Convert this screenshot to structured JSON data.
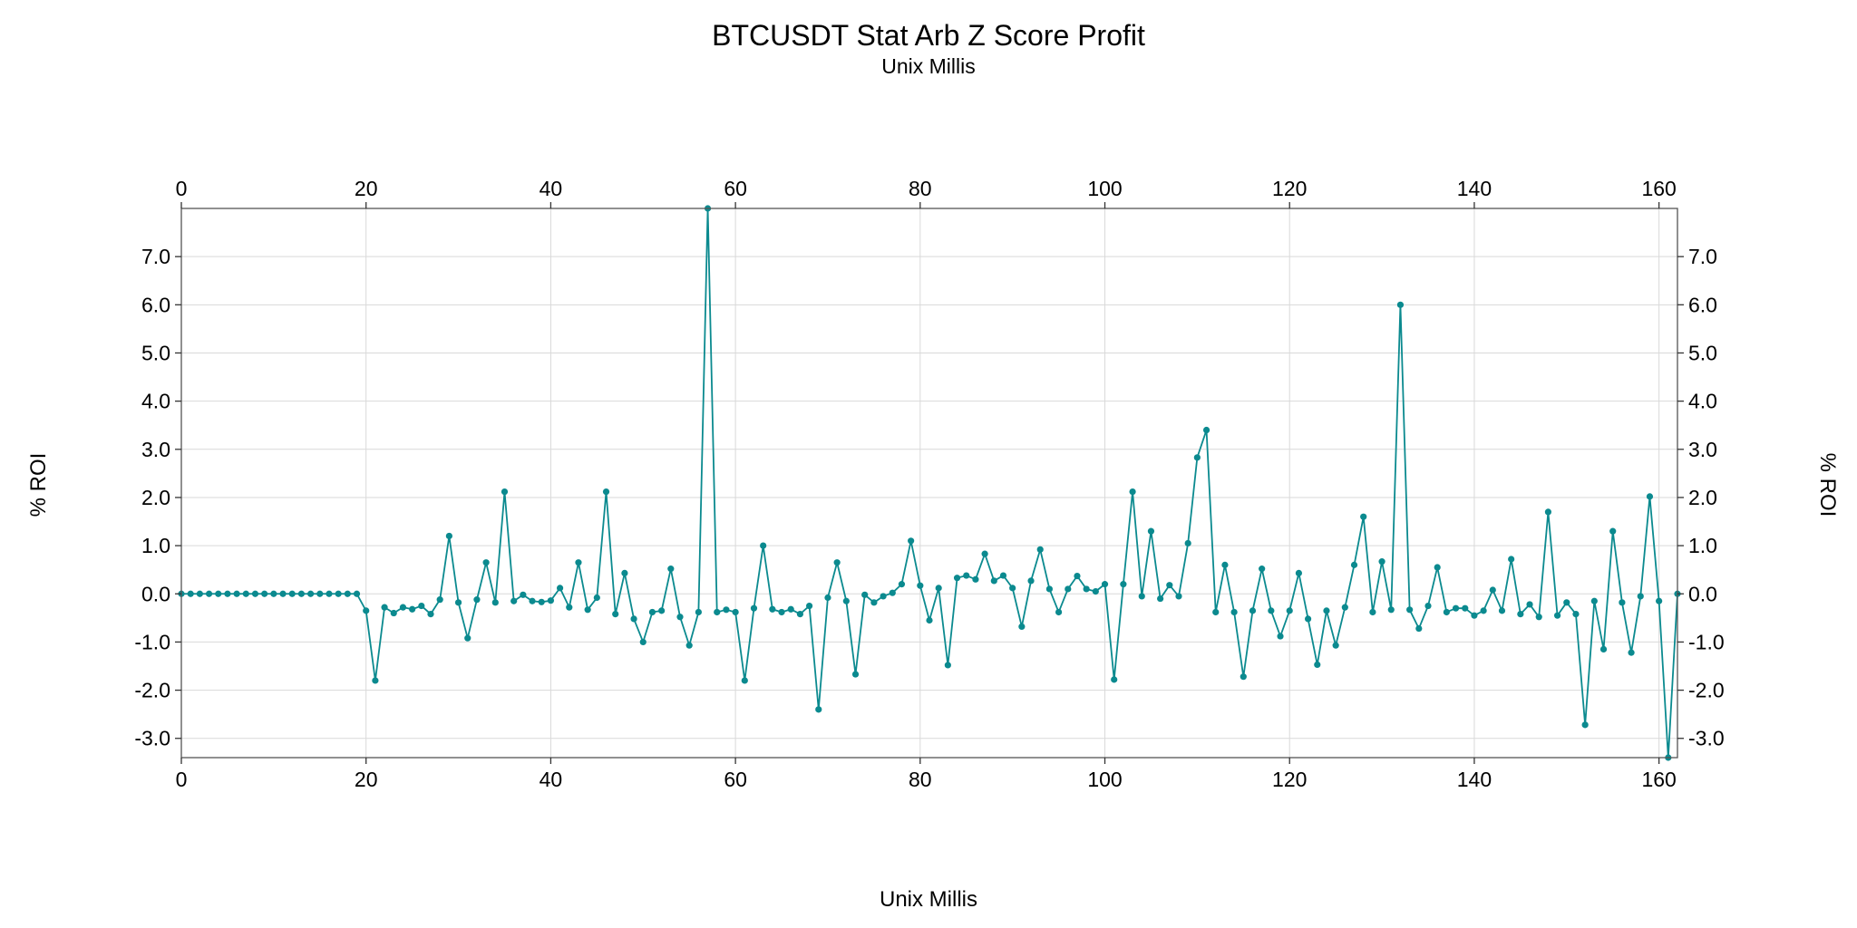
{
  "chart_data": {
    "type": "line",
    "title": "BTCUSDT Stat Arb Z Score Profit",
    "subtitle": "Unix Millis",
    "xlabel": "Unix Millis",
    "ylabel": "% ROI",
    "xlim": [
      0,
      162
    ],
    "ylim": [
      -3.4,
      8.0
    ],
    "xticks": [
      0,
      20,
      40,
      60,
      80,
      100,
      120,
      140,
      160
    ],
    "yticks": [
      -3,
      -2,
      -1,
      0,
      1,
      2,
      3,
      4,
      5,
      6,
      7
    ],
    "grid": true,
    "colors": {
      "series": "#0b8a8f"
    },
    "series": [
      {
        "values": [
          0,
          0,
          0,
          0,
          0,
          0,
          0,
          0,
          0,
          0,
          0,
          0,
          0,
          0,
          0,
          0,
          0,
          0,
          0,
          0,
          -0.35,
          -1.8,
          -0.28,
          -0.4,
          -0.28,
          -0.32,
          -0.25,
          -0.42,
          -0.12,
          1.2,
          -0.18,
          -0.92,
          -0.12,
          0.65,
          -0.18,
          2.12,
          -0.15,
          -0.02,
          -0.15,
          -0.17,
          -0.14,
          0.12,
          -0.28,
          0.65,
          -0.33,
          -0.08,
          2.12,
          -0.42,
          0.43,
          -0.52,
          -1.0,
          -0.38,
          -0.35,
          0.52,
          -0.48,
          -1.07,
          -0.38,
          8.0,
          -0.38,
          -0.33,
          -0.38,
          -1.8,
          -0.3,
          1.0,
          -0.32,
          -0.38,
          -0.32,
          -0.42,
          -0.25,
          -2.4,
          -0.08,
          0.65,
          -0.15,
          -1.67,
          -0.02,
          -0.18,
          -0.05,
          0.02,
          0.2,
          1.1,
          0.17,
          -0.55,
          0.12,
          -1.48,
          0.33,
          0.38,
          0.3,
          0.83,
          0.27,
          0.38,
          0.12,
          -0.68,
          0.27,
          0.92,
          0.1,
          -0.38,
          0.1,
          0.37,
          0.1,
          0.05,
          0.2,
          -1.78,
          0.2,
          2.12,
          -0.05,
          1.3,
          -0.1,
          0.18,
          -0.05,
          1.05,
          2.83,
          3.4,
          -0.38,
          0.6,
          -0.38,
          -1.72,
          -0.35,
          0.52,
          -0.35,
          -0.88,
          -0.35,
          0.43,
          -0.52,
          -1.47,
          -0.35,
          -1.07,
          -0.28,
          0.6,
          1.6,
          -0.38,
          0.67,
          -0.33,
          6.0,
          -0.33,
          -0.72,
          -0.25,
          0.55,
          -0.38,
          -0.3,
          -0.3,
          -0.45,
          -0.35,
          0.08,
          -0.35,
          0.72,
          -0.42,
          -0.22,
          -0.48,
          1.7,
          -0.45,
          -0.18,
          -0.42,
          -2.72,
          -0.15,
          -1.15,
          1.3,
          -0.18,
          -1.22,
          -0.05,
          2.02,
          -0.15,
          -3.4,
          0
        ]
      }
    ]
  }
}
